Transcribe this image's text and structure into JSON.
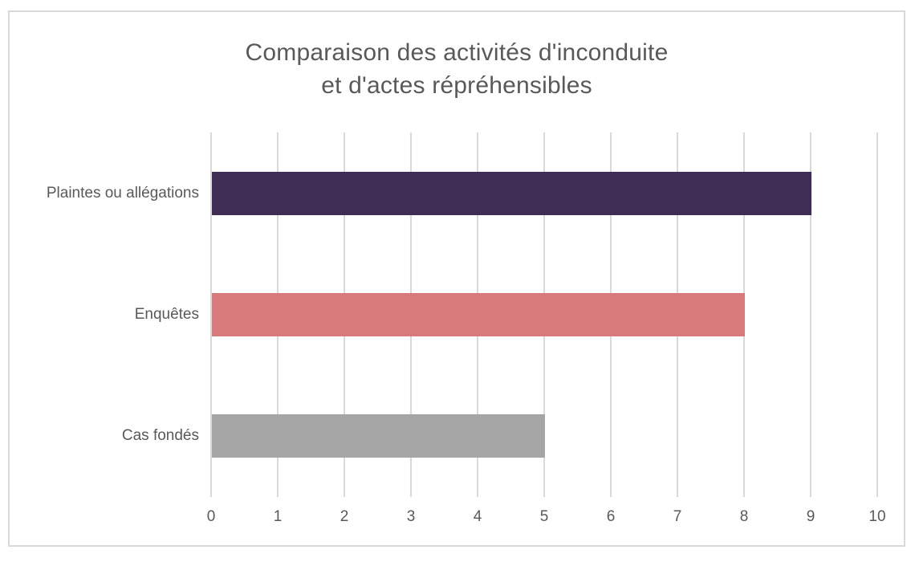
{
  "chart_data": {
    "type": "bar",
    "orientation": "horizontal",
    "title": "Comparaison des activités d'inconduite et d'actes répréhensibles",
    "title_lines": [
      "Comparaison des activités d'inconduite",
      "et d'actes répréhensibles"
    ],
    "categories": [
      "Plaintes ou allégations",
      "Enquêtes",
      "Cas fondés"
    ],
    "values": [
      9,
      8,
      5
    ],
    "bar_colors": [
      "#3F2D56",
      "#D87A7C",
      "#A5A5A5"
    ],
    "xlabel": "",
    "ylabel": "",
    "xlim": [
      0,
      10
    ],
    "x_tick_labels": [
      "0",
      "1",
      "2",
      "3",
      "4",
      "5",
      "6",
      "7",
      "8",
      "9",
      "10"
    ],
    "grid": true,
    "legend": false,
    "colors": {
      "text": "#595959",
      "gridline": "#D9D9D9",
      "frame_border": "#D9D9D9",
      "background": "#FFFFFF"
    }
  }
}
